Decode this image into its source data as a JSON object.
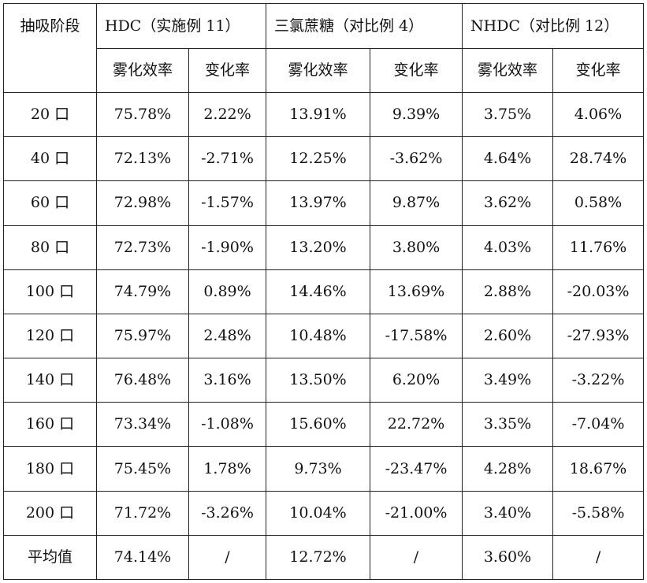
{
  "header": {
    "stage": "抽吸阶段",
    "groups": [
      "HDC（实施例 11）",
      "三氯蔗糖（对比例 4）",
      "NHDC（对比例 12）"
    ],
    "sub": [
      "雾化效率",
      "变化率",
      "雾化效率",
      "变化率",
      "雾化效率",
      "变化率"
    ]
  },
  "rows": [
    {
      "stage": "20 口",
      "cells": [
        "75.78%",
        "2.22%",
        "13.91%",
        "9.39%",
        "3.75%",
        "4.06%"
      ]
    },
    {
      "stage": "40 口",
      "cells": [
        "72.13%",
        "-2.71%",
        "12.25%",
        "-3.62%",
        "4.64%",
        "28.74%"
      ]
    },
    {
      "stage": "60 口",
      "cells": [
        "72.98%",
        "-1.57%",
        "13.97%",
        "9.87%",
        "3.62%",
        "0.58%"
      ]
    },
    {
      "stage": "80 口",
      "cells": [
        "72.73%",
        "-1.90%",
        "13.20%",
        "3.80%",
        "4.03%",
        "11.76%"
      ]
    },
    {
      "stage": "100 口",
      "cells": [
        "74.79%",
        "0.89%",
        "14.46%",
        "13.69%",
        "2.88%",
        "-20.03%"
      ]
    },
    {
      "stage": "120 口",
      "cells": [
        "75.97%",
        "2.48%",
        "10.48%",
        "-17.58%",
        "2.60%",
        "-27.93%"
      ]
    },
    {
      "stage": "140 口",
      "cells": [
        "76.48%",
        "3.16%",
        "13.50%",
        "6.20%",
        "3.49%",
        "-3.22%"
      ]
    },
    {
      "stage": "160 口",
      "cells": [
        "73.34%",
        "-1.08%",
        "15.60%",
        "22.72%",
        "3.35%",
        "-7.04%"
      ]
    },
    {
      "stage": "180 口",
      "cells": [
        "75.45%",
        "1.78%",
        "9.73%",
        "-23.47%",
        "4.28%",
        "18.67%"
      ]
    },
    {
      "stage": "200 口",
      "cells": [
        "71.72%",
        "-3.26%",
        "10.04%",
        "-21.00%",
        "3.40%",
        "-5.58%"
      ]
    },
    {
      "stage": "平均值",
      "cells": [
        "74.14%",
        "/",
        "12.72%",
        "/",
        "3.60%",
        "/"
      ]
    }
  ]
}
